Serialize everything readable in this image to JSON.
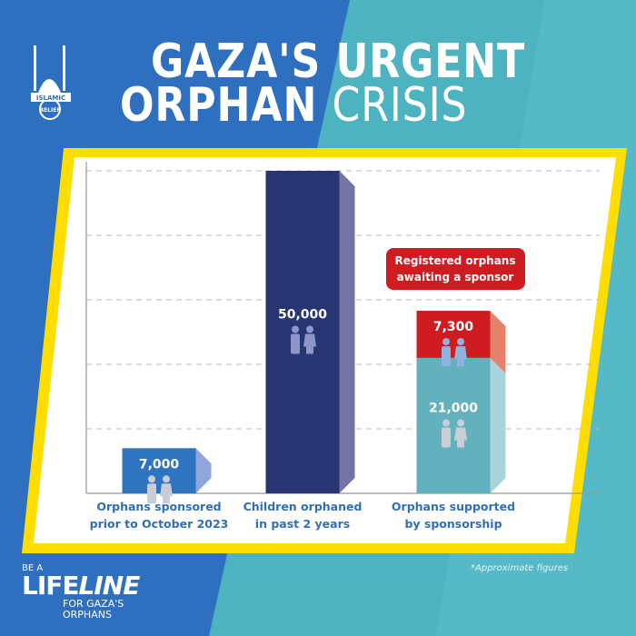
{
  "header": {
    "title_line1": "GAZA'S URGENT",
    "title_line2_bold": "ORPHAN",
    "title_line2_light": "CRISIS",
    "logo_text_top": "ISLAMIC",
    "logo_text_bottom": "RELIEF"
  },
  "footer": {
    "be_a": "BE A",
    "life": "LIFE",
    "line": "LINE",
    "for": "FOR GAZA'S",
    "orphans": "ORPHANS",
    "note": "*Approximate figures"
  },
  "colors": {
    "bg_left": "#2f6fbf",
    "bg_right": "#4db3c0",
    "frame": "#ffdd00",
    "label": "#2f6fb8"
  },
  "chart_data": {
    "type": "bar",
    "title": "GAZA'S URGENT ORPHAN CRISIS",
    "ylim": [
      0,
      50000
    ],
    "grid": true,
    "categories": [
      "Orphans sponsored prior to October 2023",
      "Children orphaned in past 2 years",
      "Orphans supported by sponsorship"
    ],
    "category_lines": [
      [
        "Orphans sponsored",
        "prior to October 2023"
      ],
      [
        "Children orphaned",
        "in past 2 years"
      ],
      [
        "Orphans supported",
        "by sponsorship"
      ]
    ],
    "bars": [
      {
        "segments": [
          {
            "value": 7000,
            "label": "7,000",
            "color": "#2f74c0",
            "side": "#8fa6da"
          }
        ]
      },
      {
        "segments": [
          {
            "value": 50000,
            "label": "50,000",
            "color": "#283573",
            "side": "#7673a5"
          }
        ]
      },
      {
        "segments": [
          {
            "value": 21000,
            "label": "21,000",
            "color": "#62b1bd",
            "side": "#a9d3da"
          },
          {
            "value": 7300,
            "label": "7,300",
            "color": "#cf1c20",
            "side": "#e6826a"
          }
        ]
      }
    ],
    "annotation": {
      "lines": [
        "Registered orphans",
        "awaiting a sponsor"
      ],
      "color": "#cf1c20"
    }
  }
}
